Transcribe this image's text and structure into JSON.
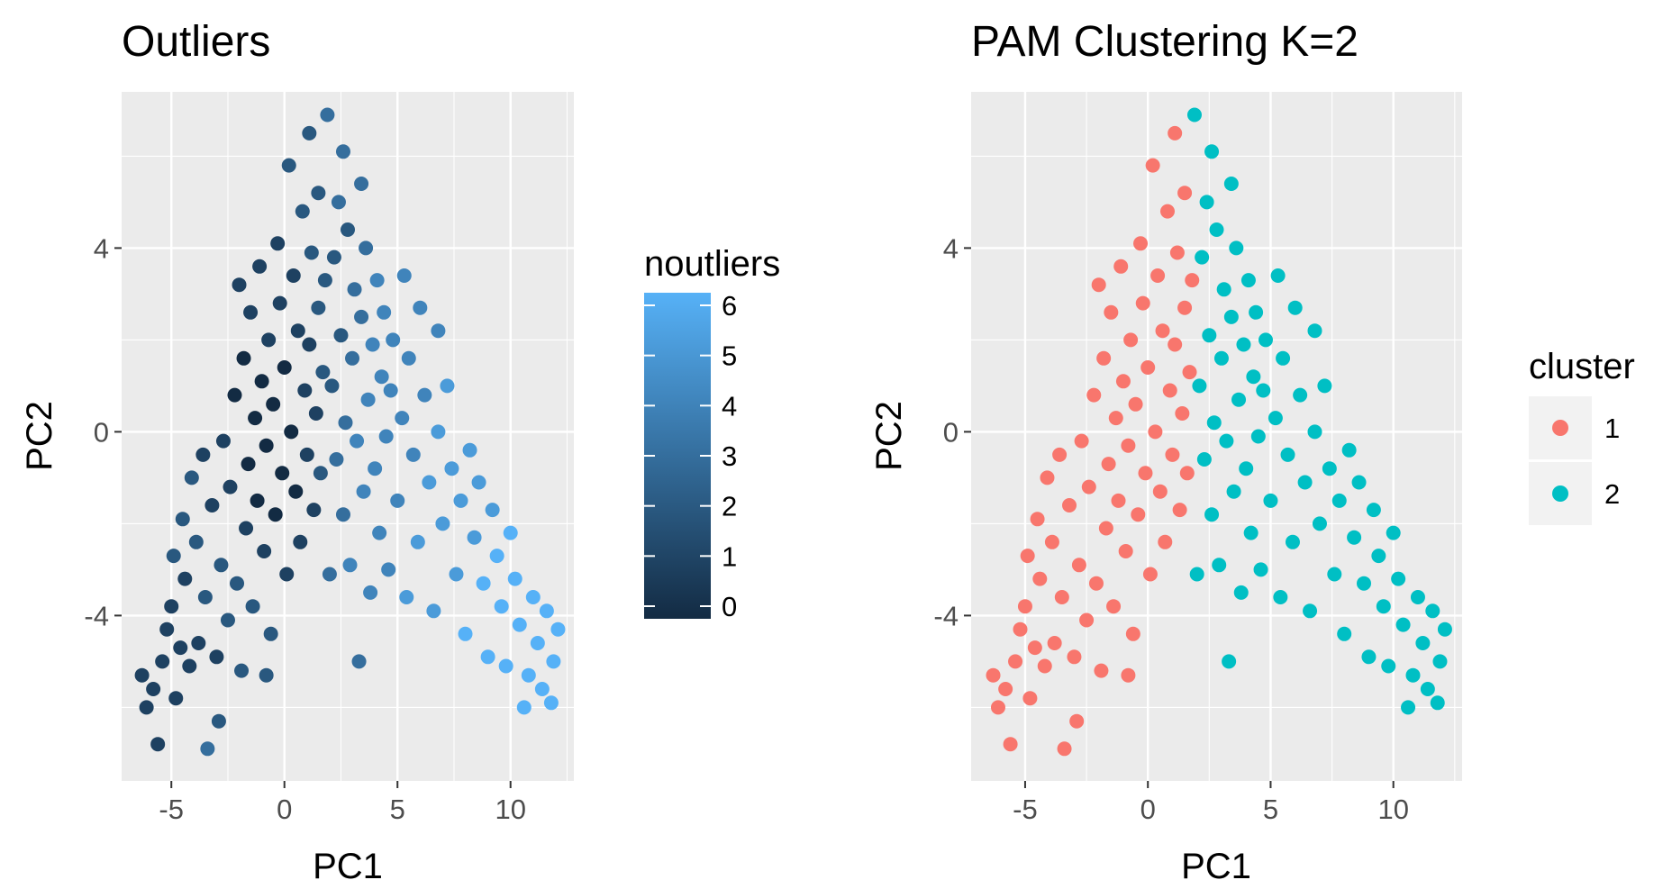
{
  "chart_data": [
    {
      "type": "scatter",
      "title": "Outliers",
      "xlabel": "PC1",
      "ylabel": "PC2",
      "xlim": [
        -7.2,
        12.8
      ],
      "ylim": [
        -7.6,
        7.4
      ],
      "x_ticks": [
        -5,
        0,
        5,
        10
      ],
      "y_ticks": [
        -4,
        0,
        4
      ],
      "grid": true,
      "color_scale": {
        "title": "noutliers",
        "min": 0,
        "max": 6,
        "ticks": [
          0,
          1,
          2,
          3,
          4,
          5,
          6
        ],
        "low_color": "#132B43",
        "high_color": "#56B1F7"
      },
      "legend_position": "right"
    },
    {
      "type": "scatter",
      "title": "PAM Clustering K=2",
      "xlabel": "PC1",
      "ylabel": "PC2",
      "xlim": [
        -7.2,
        12.8
      ],
      "ylim": [
        -7.6,
        7.4
      ],
      "x_ticks": [
        -5,
        0,
        5,
        10
      ],
      "y_ticks": [
        -4,
        0,
        4
      ],
      "grid": true,
      "legend": {
        "title": "cluster",
        "entries": [
          {
            "label": "1",
            "color": "#F8766D"
          },
          {
            "label": "2",
            "color": "#00BFC4"
          }
        ]
      },
      "legend_position": "right"
    }
  ],
  "points": [
    {
      "x": -6.3,
      "y": -5.3,
      "n": 1,
      "c": 1
    },
    {
      "x": -6.1,
      "y": -6.0,
      "n": 1,
      "c": 1
    },
    {
      "x": -5.6,
      "y": -6.8,
      "n": 1,
      "c": 1
    },
    {
      "x": -5.8,
      "y": -5.6,
      "n": 1,
      "c": 1
    },
    {
      "x": -5.4,
      "y": -5.0,
      "n": 1,
      "c": 1
    },
    {
      "x": -5.2,
      "y": -4.3,
      "n": 1,
      "c": 1
    },
    {
      "x": -5.0,
      "y": -3.8,
      "n": 1,
      "c": 1
    },
    {
      "x": -4.9,
      "y": -2.7,
      "n": 2,
      "c": 1
    },
    {
      "x": -4.8,
      "y": -5.8,
      "n": 1,
      "c": 1
    },
    {
      "x": -4.6,
      "y": -4.7,
      "n": 1,
      "c": 1
    },
    {
      "x": -4.5,
      "y": -1.9,
      "n": 2,
      "c": 1
    },
    {
      "x": -4.4,
      "y": -3.2,
      "n": 1,
      "c": 1
    },
    {
      "x": -4.2,
      "y": -5.1,
      "n": 1,
      "c": 1
    },
    {
      "x": -4.1,
      "y": -1.0,
      "n": 2,
      "c": 1
    },
    {
      "x": -3.9,
      "y": -2.4,
      "n": 2,
      "c": 1
    },
    {
      "x": -3.8,
      "y": -4.6,
      "n": 1,
      "c": 1
    },
    {
      "x": -3.6,
      "y": -0.5,
      "n": 1,
      "c": 1
    },
    {
      "x": -3.5,
      "y": -3.6,
      "n": 2,
      "c": 1
    },
    {
      "x": -3.4,
      "y": -6.9,
      "n": 3,
      "c": 1
    },
    {
      "x": -3.2,
      "y": -1.6,
      "n": 1,
      "c": 1
    },
    {
      "x": -3.0,
      "y": -4.9,
      "n": 1,
      "c": 1
    },
    {
      "x": -2.9,
      "y": -6.3,
      "n": 2,
      "c": 1
    },
    {
      "x": -2.8,
      "y": -2.9,
      "n": 2,
      "c": 1
    },
    {
      "x": -2.7,
      "y": -0.2,
      "n": 1,
      "c": 1
    },
    {
      "x": -2.5,
      "y": -4.1,
      "n": 2,
      "c": 1
    },
    {
      "x": -2.4,
      "y": -1.2,
      "n": 1,
      "c": 1
    },
    {
      "x": -2.2,
      "y": 0.8,
      "n": 0,
      "c": 1
    },
    {
      "x": -2.1,
      "y": -3.3,
      "n": 2,
      "c": 1
    },
    {
      "x": -2.0,
      "y": 3.2,
      "n": 1,
      "c": 1
    },
    {
      "x": -1.9,
      "y": -5.2,
      "n": 2,
      "c": 1
    },
    {
      "x": -1.8,
      "y": 1.6,
      "n": 0,
      "c": 1
    },
    {
      "x": -1.7,
      "y": -2.1,
      "n": 1,
      "c": 1
    },
    {
      "x": -1.6,
      "y": -0.7,
      "n": 0,
      "c": 1
    },
    {
      "x": -1.5,
      "y": 2.6,
      "n": 1,
      "c": 1
    },
    {
      "x": -1.4,
      "y": -3.8,
      "n": 2,
      "c": 1
    },
    {
      "x": -1.3,
      "y": 0.3,
      "n": 0,
      "c": 1
    },
    {
      "x": -1.2,
      "y": -1.5,
      "n": 0,
      "c": 1
    },
    {
      "x": -1.1,
      "y": 3.6,
      "n": 1,
      "c": 1
    },
    {
      "x": -1.0,
      "y": 1.1,
      "n": 0,
      "c": 1
    },
    {
      "x": -0.9,
      "y": -2.6,
      "n": 1,
      "c": 1
    },
    {
      "x": -0.8,
      "y": -0.3,
      "n": 0,
      "c": 1
    },
    {
      "x": -0.7,
      "y": 2.0,
      "n": 1,
      "c": 1
    },
    {
      "x": -0.6,
      "y": -4.4,
      "n": 2,
      "c": 1
    },
    {
      "x": -0.5,
      "y": 0.6,
      "n": 0,
      "c": 1
    },
    {
      "x": -0.4,
      "y": -1.8,
      "n": 0,
      "c": 1
    },
    {
      "x": -0.3,
      "y": 4.1,
      "n": 1,
      "c": 1
    },
    {
      "x": -0.2,
      "y": 2.8,
      "n": 1,
      "c": 1
    },
    {
      "x": -0.1,
      "y": -0.9,
      "n": 0,
      "c": 1
    },
    {
      "x": 0.0,
      "y": 1.4,
      "n": 0,
      "c": 1
    },
    {
      "x": 0.1,
      "y": -3.1,
      "n": 1,
      "c": 1
    },
    {
      "x": 0.2,
      "y": 5.8,
      "n": 2,
      "c": 1
    },
    {
      "x": 0.3,
      "y": 0.0,
      "n": 0,
      "c": 1
    },
    {
      "x": 0.4,
      "y": 3.4,
      "n": 1,
      "c": 1
    },
    {
      "x": 0.5,
      "y": -1.3,
      "n": 0,
      "c": 1
    },
    {
      "x": 0.6,
      "y": 2.2,
      "n": 1,
      "c": 1
    },
    {
      "x": 0.7,
      "y": -2.4,
      "n": 1,
      "c": 1
    },
    {
      "x": 0.8,
      "y": 4.8,
      "n": 2,
      "c": 1
    },
    {
      "x": 0.9,
      "y": 0.9,
      "n": 1,
      "c": 1
    },
    {
      "x": 1.0,
      "y": -0.5,
      "n": 1,
      "c": 1
    },
    {
      "x": 1.1,
      "y": 1.9,
      "n": 1,
      "c": 1
    },
    {
      "x": 1.2,
      "y": 3.9,
      "n": 2,
      "c": 1
    },
    {
      "x": 1.3,
      "y": -1.7,
      "n": 1,
      "c": 1
    },
    {
      "x": 1.4,
      "y": 0.4,
      "n": 1,
      "c": 1
    },
    {
      "x": 1.5,
      "y": 2.7,
      "n": 2,
      "c": 1
    },
    {
      "x": 1.5,
      "y": 5.2,
      "n": 2,
      "c": 1
    },
    {
      "x": 1.6,
      "y": -0.9,
      "n": 2,
      "c": 1
    },
    {
      "x": 1.7,
      "y": 1.3,
      "n": 2,
      "c": 1
    },
    {
      "x": 1.8,
      "y": 3.3,
      "n": 2,
      "c": 1
    },
    {
      "x": 1.1,
      "y": 6.5,
      "n": 2,
      "c": 1
    },
    {
      "x": -0.8,
      "y": -5.3,
      "n": 2,
      "c": 1
    },
    {
      "x": 2.0,
      "y": -3.1,
      "n": 3,
      "c": 2
    },
    {
      "x": 2.1,
      "y": 1.0,
      "n": 2,
      "c": 2
    },
    {
      "x": 2.2,
      "y": 3.8,
      "n": 2,
      "c": 2
    },
    {
      "x": 2.3,
      "y": -0.6,
      "n": 3,
      "c": 2
    },
    {
      "x": 2.4,
      "y": 5.0,
      "n": 3,
      "c": 2
    },
    {
      "x": 2.5,
      "y": 2.1,
      "n": 2,
      "c": 2
    },
    {
      "x": 2.6,
      "y": -1.8,
      "n": 3,
      "c": 2
    },
    {
      "x": 2.7,
      "y": 0.2,
      "n": 3,
      "c": 2
    },
    {
      "x": 2.8,
      "y": 4.4,
      "n": 2,
      "c": 2
    },
    {
      "x": 2.9,
      "y": -2.9,
      "n": 4,
      "c": 2
    },
    {
      "x": 3.0,
      "y": 1.6,
      "n": 3,
      "c": 2
    },
    {
      "x": 3.1,
      "y": 3.1,
      "n": 3,
      "c": 2
    },
    {
      "x": 3.2,
      "y": -0.2,
      "n": 4,
      "c": 2
    },
    {
      "x": 3.3,
      "y": -5.0,
      "n": 3,
      "c": 2
    },
    {
      "x": 3.4,
      "y": 2.5,
      "n": 3,
      "c": 2
    },
    {
      "x": 3.5,
      "y": -1.3,
      "n": 4,
      "c": 2
    },
    {
      "x": 3.6,
      "y": 4.0,
      "n": 3,
      "c": 2
    },
    {
      "x": 3.7,
      "y": 0.7,
      "n": 4,
      "c": 2
    },
    {
      "x": 3.8,
      "y": -3.5,
      "n": 4,
      "c": 2
    },
    {
      "x": 3.9,
      "y": 1.9,
      "n": 4,
      "c": 2
    },
    {
      "x": 4.0,
      "y": -0.8,
      "n": 4,
      "c": 2
    },
    {
      "x": 4.1,
      "y": 3.3,
      "n": 4,
      "c": 2
    },
    {
      "x": 4.2,
      "y": -2.2,
      "n": 4,
      "c": 2
    },
    {
      "x": 4.3,
      "y": 1.2,
      "n": 4,
      "c": 2
    },
    {
      "x": 4.4,
      "y": 2.6,
      "n": 4,
      "c": 2
    },
    {
      "x": 4.5,
      "y": -0.1,
      "n": 4,
      "c": 2
    },
    {
      "x": 4.6,
      "y": -3.0,
      "n": 4,
      "c": 2
    },
    {
      "x": 4.7,
      "y": 0.9,
      "n": 4,
      "c": 2
    },
    {
      "x": 4.8,
      "y": 2.0,
      "n": 4,
      "c": 2
    },
    {
      "x": 5.0,
      "y": -1.5,
      "n": 4,
      "c": 2
    },
    {
      "x": 5.2,
      "y": 0.3,
      "n": 4,
      "c": 2
    },
    {
      "x": 5.4,
      "y": -3.6,
      "n": 5,
      "c": 2
    },
    {
      "x": 5.5,
      "y": 1.6,
      "n": 4,
      "c": 2
    },
    {
      "x": 5.7,
      "y": -0.5,
      "n": 4,
      "c": 2
    },
    {
      "x": 5.9,
      "y": -2.4,
      "n": 5,
      "c": 2
    },
    {
      "x": 6.0,
      "y": 2.7,
      "n": 4,
      "c": 2
    },
    {
      "x": 6.2,
      "y": 0.8,
      "n": 4,
      "c": 2
    },
    {
      "x": 6.4,
      "y": -1.1,
      "n": 5,
      "c": 2
    },
    {
      "x": 6.6,
      "y": -3.9,
      "n": 5,
      "c": 2
    },
    {
      "x": 6.8,
      "y": 0.0,
      "n": 5,
      "c": 2
    },
    {
      "x": 7.0,
      "y": -2.0,
      "n": 5,
      "c": 2
    },
    {
      "x": 7.2,
      "y": 1.0,
      "n": 5,
      "c": 2
    },
    {
      "x": 7.4,
      "y": -0.8,
      "n": 5,
      "c": 2
    },
    {
      "x": 7.6,
      "y": -3.1,
      "n": 5,
      "c": 2
    },
    {
      "x": 7.8,
      "y": -1.5,
      "n": 5,
      "c": 2
    },
    {
      "x": 8.0,
      "y": -4.4,
      "n": 6,
      "c": 2
    },
    {
      "x": 8.2,
      "y": -0.4,
      "n": 5,
      "c": 2
    },
    {
      "x": 8.4,
      "y": -2.3,
      "n": 5,
      "c": 2
    },
    {
      "x": 8.6,
      "y": -1.1,
      "n": 5,
      "c": 2
    },
    {
      "x": 8.8,
      "y": -3.3,
      "n": 6,
      "c": 2
    },
    {
      "x": 9.0,
      "y": -4.9,
      "n": 6,
      "c": 2
    },
    {
      "x": 9.2,
      "y": -1.7,
      "n": 5,
      "c": 2
    },
    {
      "x": 9.4,
      "y": -2.7,
      "n": 6,
      "c": 2
    },
    {
      "x": 9.6,
      "y": -3.8,
      "n": 6,
      "c": 2
    },
    {
      "x": 9.8,
      "y": -5.1,
      "n": 6,
      "c": 2
    },
    {
      "x": 10.0,
      "y": -2.2,
      "n": 6,
      "c": 2
    },
    {
      "x": 10.2,
      "y": -3.2,
      "n": 6,
      "c": 2
    },
    {
      "x": 10.4,
      "y": -4.2,
      "n": 6,
      "c": 2
    },
    {
      "x": 10.6,
      "y": -6.0,
      "n": 6,
      "c": 2
    },
    {
      "x": 10.8,
      "y": -5.3,
      "n": 6,
      "c": 2
    },
    {
      "x": 11.0,
      "y": -3.6,
      "n": 6,
      "c": 2
    },
    {
      "x": 11.2,
      "y": -4.6,
      "n": 6,
      "c": 2
    },
    {
      "x": 11.4,
      "y": -5.6,
      "n": 6,
      "c": 2
    },
    {
      "x": 11.6,
      "y": -3.9,
      "n": 6,
      "c": 2
    },
    {
      "x": 11.9,
      "y": -5.0,
      "n": 6,
      "c": 2
    },
    {
      "x": 12.1,
      "y": -4.3,
      "n": 6,
      "c": 2
    },
    {
      "x": 11.8,
      "y": -5.9,
      "n": 6,
      "c": 2
    },
    {
      "x": 2.6,
      "y": 6.1,
      "n": 3,
      "c": 2
    },
    {
      "x": 1.9,
      "y": 6.9,
      "n": 3,
      "c": 2
    },
    {
      "x": 3.4,
      "y": 5.4,
      "n": 3,
      "c": 2
    },
    {
      "x": 5.3,
      "y": 3.4,
      "n": 4,
      "c": 2
    },
    {
      "x": 6.8,
      "y": 2.2,
      "n": 4,
      "c": 2
    }
  ]
}
